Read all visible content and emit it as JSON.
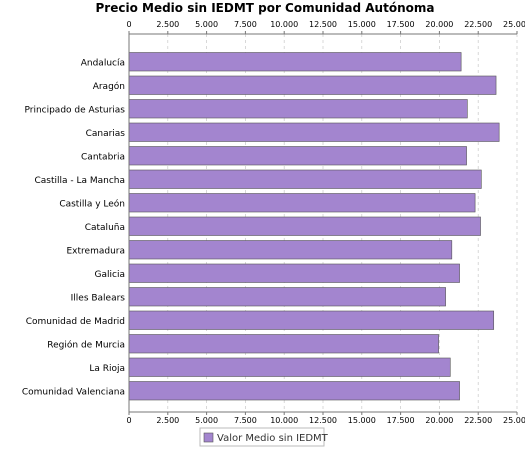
{
  "chart_data": {
    "type": "bar",
    "orientation": "horizontal",
    "title": "Precio Medio sin IEDMT por Comunidad Autónoma",
    "categories": [
      "Andalucía",
      "Aragón",
      "Principado de Asturias",
      "Canarias",
      "Cantabria",
      "Castilla - La Mancha",
      "Castilla y León",
      "Cataluña",
      "Extremadura",
      "Galicia",
      "Illes Balears",
      "Comunidad de Madrid",
      "Región de Murcia",
      "La Rioja",
      "Comunidad Valenciana"
    ],
    "series": [
      {
        "name": "Valor Medio sin IEDMT",
        "values": [
          21400,
          23650,
          21800,
          23850,
          21750,
          22700,
          22300,
          22650,
          20800,
          21300,
          20400,
          23500,
          19950,
          20700,
          21300
        ]
      }
    ],
    "xlim": [
      0,
      25000
    ],
    "xticks": [
      "0",
      "2.500",
      "5.000",
      "7.500",
      "10.000",
      "12.500",
      "15.000",
      "17.500",
      "20.000",
      "22.500",
      "25.000"
    ],
    "grid": true,
    "legend_position": "bottom",
    "bar_color": "#A385CF"
  }
}
